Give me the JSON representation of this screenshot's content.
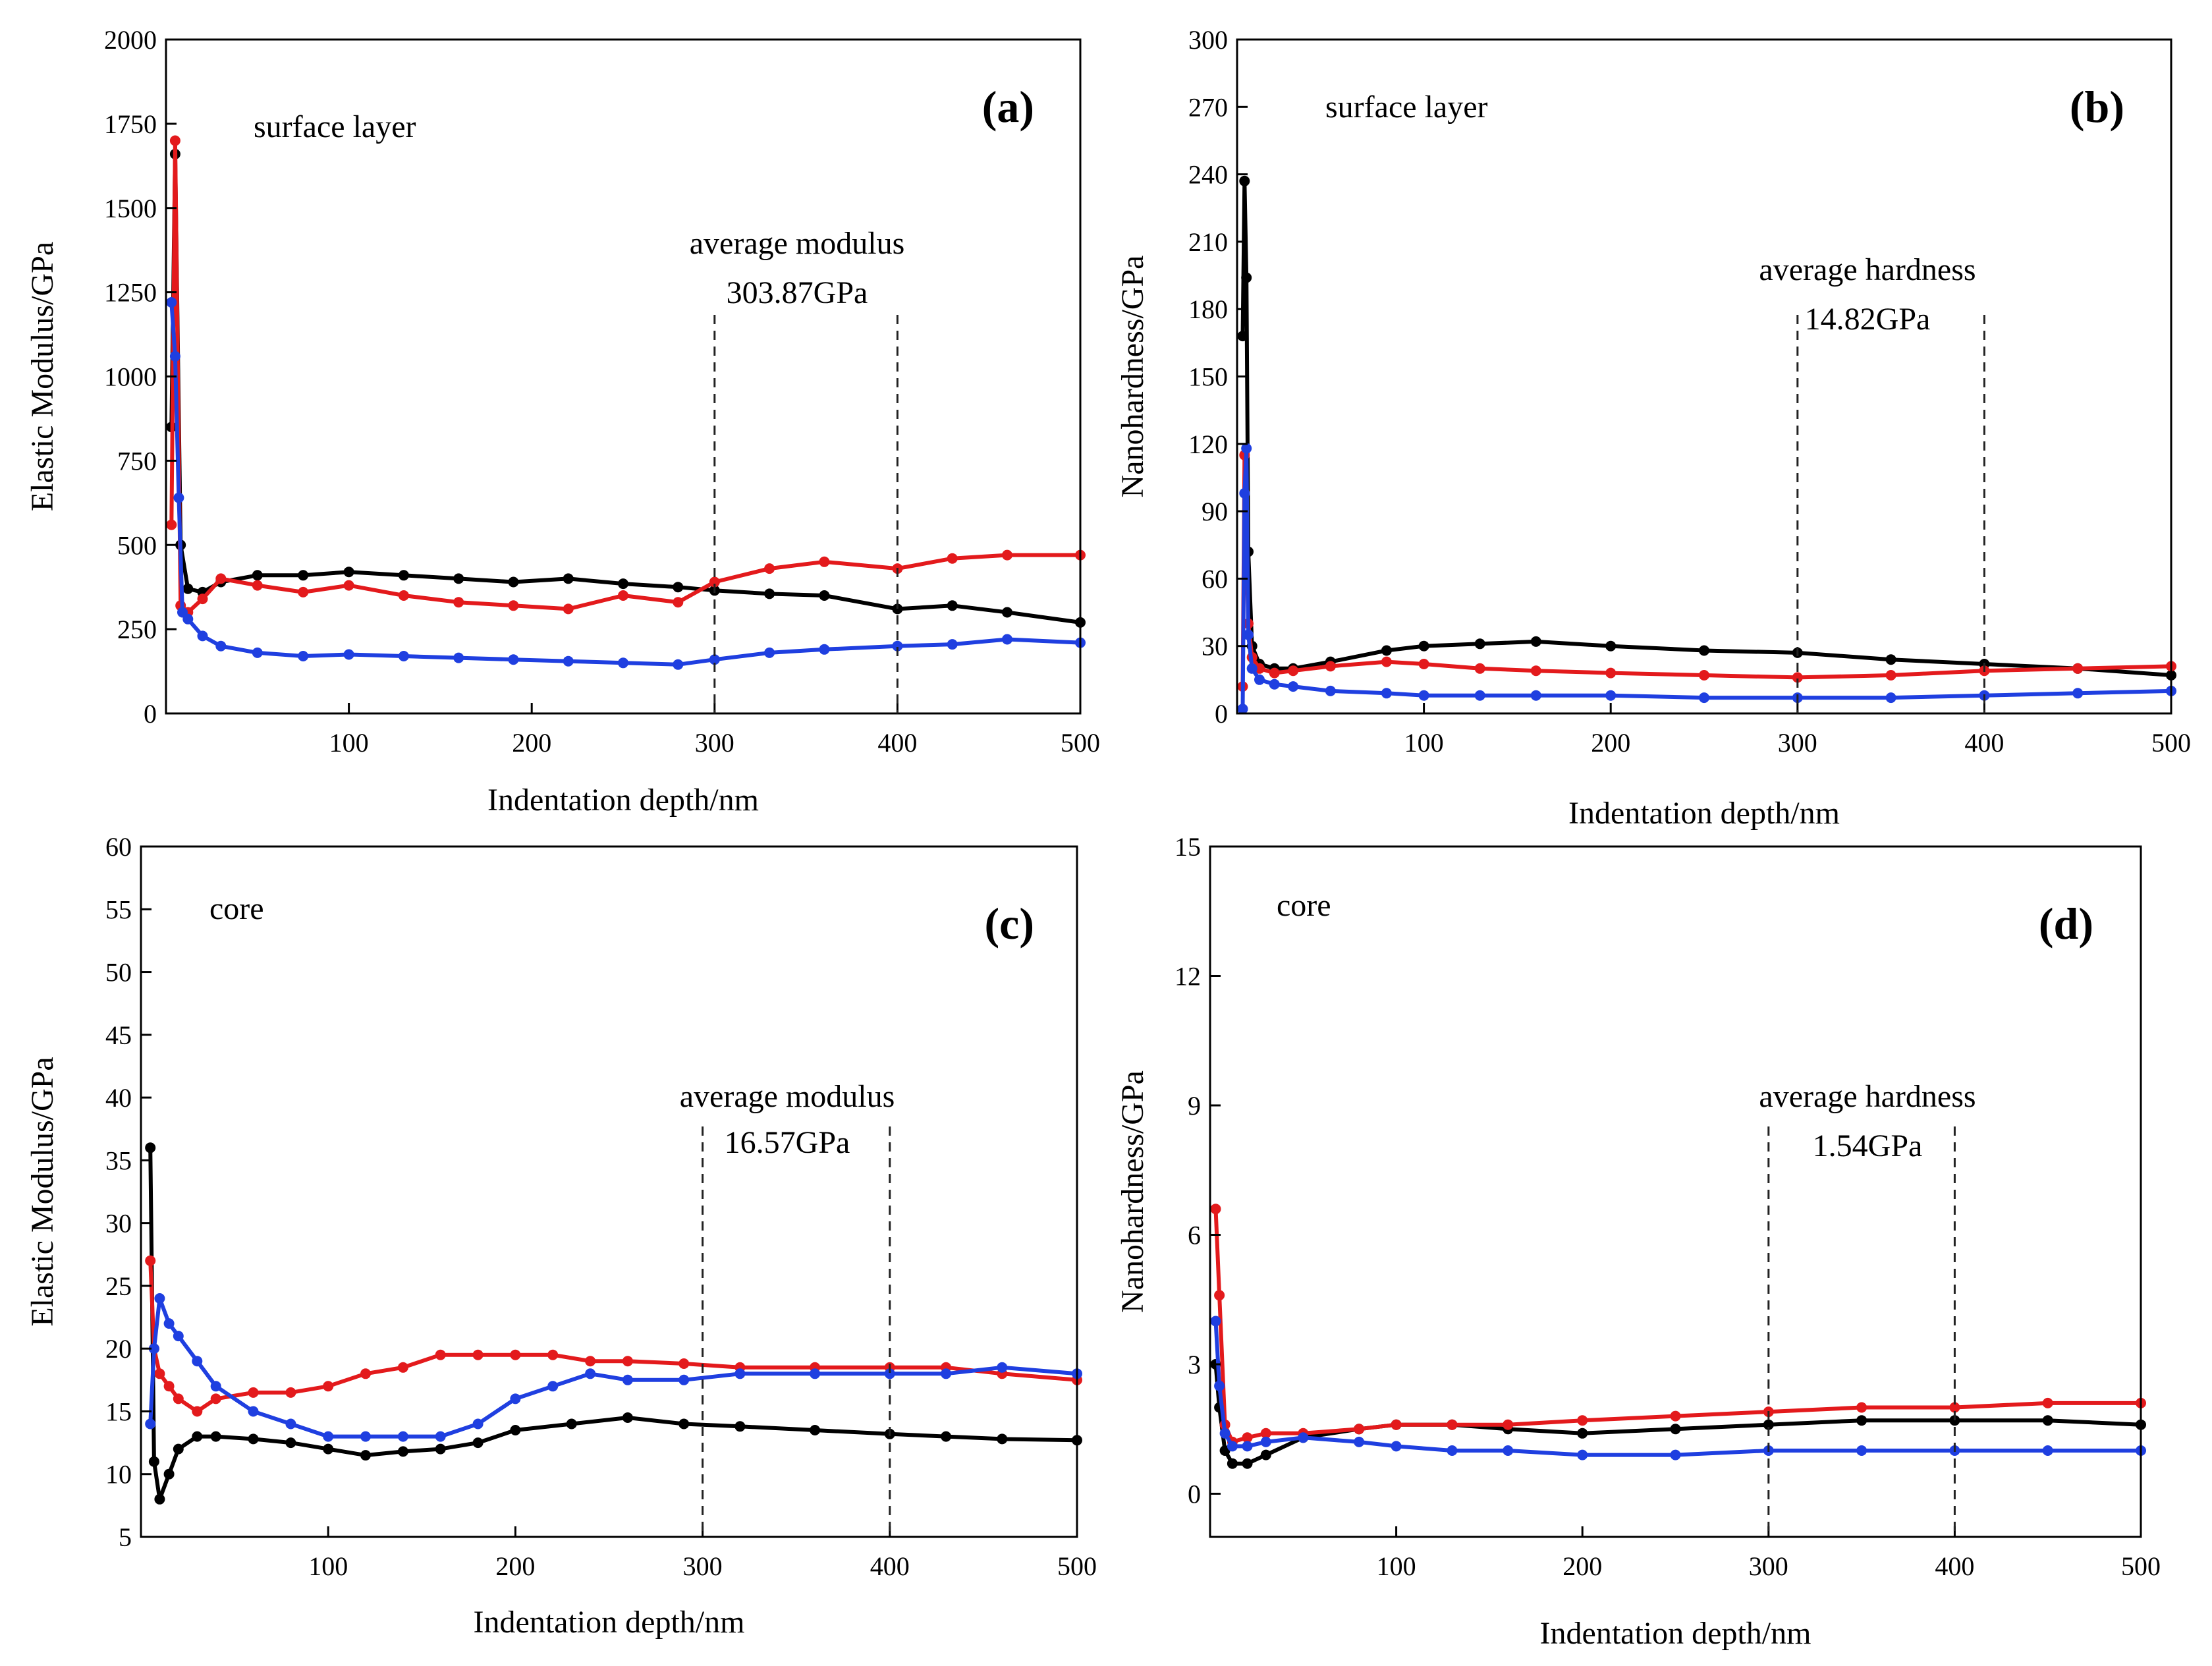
{
  "chart_data": [
    {
      "panel": "(a)",
      "type": "scatter",
      "region_label": "surface layer",
      "xlabel": "Indentation depth/nm",
      "ylabel": "Elastic Modulus/GPa",
      "xlim": [
        0,
        500
      ],
      "ylim": [
        0,
        2000
      ],
      "xticks": [
        100,
        200,
        300,
        400,
        500
      ],
      "yticks": [
        0,
        250,
        500,
        750,
        1000,
        1250,
        1500,
        1750,
        2000
      ],
      "annotation": {
        "line1": "average modulus",
        "line2": "303.87GPa"
      },
      "vlines": [
        300,
        400
      ],
      "series": [
        {
          "name": "black",
          "color": "#000000",
          "x": [
            3,
            5,
            8,
            12,
            20,
            30,
            50,
            75,
            100,
            130,
            160,
            190,
            220,
            250,
            280,
            300,
            330,
            360,
            400,
            430,
            460,
            500
          ],
          "y": [
            850,
            1660,
            500,
            370,
            360,
            390,
            410,
            410,
            420,
            410,
            400,
            390,
            400,
            385,
            375,
            365,
            355,
            350,
            310,
            320,
            300,
            270
          ]
        },
        {
          "name": "red",
          "color": "#e31a1c",
          "x": [
            3,
            5,
            8,
            12,
            20,
            30,
            50,
            75,
            100,
            130,
            160,
            190,
            220,
            250,
            280,
            300,
            330,
            360,
            400,
            430,
            460,
            500
          ],
          "y": [
            560,
            1700,
            320,
            300,
            340,
            400,
            380,
            360,
            380,
            350,
            330,
            320,
            310,
            350,
            330,
            390,
            430,
            450,
            430,
            460,
            470,
            470
          ]
        },
        {
          "name": "blue",
          "color": "#1f3fe0",
          "x": [
            3,
            5,
            7,
            9,
            12,
            20,
            30,
            50,
            75,
            100,
            130,
            160,
            190,
            220,
            250,
            280,
            300,
            330,
            360,
            400,
            430,
            460,
            500
          ],
          "y": [
            1220,
            1060,
            640,
            300,
            280,
            230,
            200,
            180,
            170,
            175,
            170,
            165,
            160,
            155,
            150,
            145,
            160,
            180,
            190,
            200,
            205,
            220,
            210
          ]
        }
      ]
    },
    {
      "panel": "(b)",
      "type": "scatter",
      "region_label": "surface layer",
      "xlabel": "Indentation depth/nm",
      "ylabel": "Nanohardness/GPa",
      "xlim": [
        0,
        500
      ],
      "ylim": [
        0,
        300
      ],
      "xticks": [
        100,
        200,
        300,
        400,
        500
      ],
      "yticks": [
        0,
        30,
        60,
        90,
        120,
        150,
        180,
        210,
        240,
        270,
        300
      ],
      "annotation": {
        "line1": "average hardness",
        "line2": "14.82GPa"
      },
      "vlines": [
        300,
        400
      ],
      "series": [
        {
          "name": "black",
          "color": "#000000",
          "x": [
            3,
            4,
            5,
            6,
            8,
            12,
            20,
            30,
            50,
            80,
            100,
            130,
            160,
            200,
            250,
            300,
            350,
            400,
            450,
            500
          ],
          "y": [
            168,
            237,
            194,
            72,
            30,
            22,
            20,
            20,
            23,
            28,
            30,
            31,
            32,
            30,
            28,
            27,
            24,
            22,
            20,
            17
          ]
        },
        {
          "name": "red",
          "color": "#e31a1c",
          "x": [
            3,
            4,
            6,
            8,
            12,
            20,
            30,
            50,
            80,
            100,
            130,
            160,
            200,
            250,
            300,
            350,
            400,
            450,
            500
          ],
          "y": [
            12,
            115,
            40,
            25,
            20,
            18,
            19,
            21,
            23,
            22,
            20,
            19,
            18,
            17,
            16,
            17,
            19,
            20,
            21
          ]
        },
        {
          "name": "blue",
          "color": "#1f3fe0",
          "x": [
            3,
            4,
            5,
            6,
            8,
            12,
            20,
            30,
            50,
            80,
            100,
            130,
            160,
            200,
            250,
            300,
            350,
            400,
            450,
            500
          ],
          "y": [
            2,
            98,
            118,
            35,
            20,
            15,
            13,
            12,
            10,
            9,
            8,
            8,
            8,
            8,
            7,
            7,
            7,
            8,
            9,
            10
          ]
        }
      ]
    },
    {
      "panel": "(c)",
      "type": "scatter",
      "region_label": "core",
      "xlabel": "Indentation depth/nm",
      "ylabel": "Elastic Modulus/GPa",
      "xlim": [
        0,
        500
      ],
      "ylim": [
        5,
        60
      ],
      "xticks": [
        100,
        200,
        300,
        400,
        500
      ],
      "yticks": [
        5,
        10,
        15,
        20,
        25,
        30,
        35,
        40,
        45,
        50,
        55,
        60
      ],
      "annotation": {
        "line1": "average modulus",
        "line2": "16.57GPa"
      },
      "vlines": [
        300,
        400
      ],
      "series": [
        {
          "name": "black",
          "color": "#000000",
          "x": [
            5,
            7,
            10,
            15,
            20,
            30,
            40,
            60,
            80,
            100,
            120,
            140,
            160,
            180,
            200,
            230,
            260,
            290,
            320,
            360,
            400,
            430,
            460,
            500
          ],
          "y": [
            36,
            11,
            8,
            10,
            12,
            13,
            13,
            12.8,
            12.5,
            12,
            11.5,
            11.8,
            12,
            12.5,
            13.5,
            14,
            14.5,
            14,
            13.8,
            13.5,
            13.2,
            13,
            12.8,
            12.7
          ]
        },
        {
          "name": "red",
          "color": "#e31a1c",
          "x": [
            5,
            7,
            10,
            15,
            20,
            30,
            40,
            60,
            80,
            100,
            120,
            140,
            160,
            180,
            200,
            220,
            240,
            260,
            290,
            320,
            360,
            400,
            430,
            460,
            500
          ],
          "y": [
            27,
            20,
            18,
            17,
            16,
            15,
            16,
            16.5,
            16.5,
            17,
            18,
            18.5,
            19.5,
            19.5,
            19.5,
            19.5,
            19,
            19,
            18.8,
            18.5,
            18.5,
            18.5,
            18.5,
            18,
            17.5
          ]
        },
        {
          "name": "blue",
          "color": "#1f3fe0",
          "x": [
            5,
            7,
            10,
            15,
            20,
            30,
            40,
            60,
            80,
            100,
            120,
            140,
            160,
            180,
            200,
            220,
            240,
            260,
            290,
            320,
            360,
            400,
            430,
            460,
            500
          ],
          "y": [
            14,
            20,
            24,
            22,
            21,
            19,
            17,
            15,
            14,
            13,
            13,
            13,
            13,
            14,
            16,
            17,
            18,
            17.5,
            17.5,
            18,
            18,
            18,
            18,
            18.5,
            18
          ]
        }
      ]
    },
    {
      "panel": "(d)",
      "type": "scatter",
      "region_label": "core",
      "xlabel": "Indentation depth/nm",
      "ylabel": "Nanohardness/GPa",
      "xlim": [
        0,
        500
      ],
      "ylim": [
        -1,
        15
      ],
      "xticks": [
        100,
        200,
        300,
        400,
        500
      ],
      "yticks": [
        0,
        3,
        6,
        9,
        12,
        15
      ],
      "annotation": {
        "line1": "average hardness",
        "line2": "1.54GPa"
      },
      "vlines": [
        300,
        400
      ],
      "series": [
        {
          "name": "black",
          "color": "#000000",
          "x": [
            3,
            5,
            8,
            12,
            20,
            30,
            50,
            80,
            100,
            130,
            160,
            200,
            250,
            300,
            350,
            400,
            450,
            500
          ],
          "y": [
            3.0,
            2.0,
            1.0,
            0.7,
            0.7,
            0.9,
            1.3,
            1.5,
            1.6,
            1.6,
            1.5,
            1.4,
            1.5,
            1.6,
            1.7,
            1.7,
            1.7,
            1.6
          ]
        },
        {
          "name": "red",
          "color": "#e31a1c",
          "x": [
            3,
            5,
            8,
            12,
            20,
            30,
            50,
            80,
            100,
            130,
            160,
            200,
            250,
            300,
            350,
            400,
            450,
            500
          ],
          "y": [
            6.6,
            4.6,
            1.6,
            1.2,
            1.3,
            1.4,
            1.4,
            1.5,
            1.6,
            1.6,
            1.6,
            1.7,
            1.8,
            1.9,
            2.0,
            2.0,
            2.1,
            2.1
          ]
        },
        {
          "name": "blue",
          "color": "#1f3fe0",
          "x": [
            3,
            5,
            8,
            12,
            20,
            30,
            50,
            80,
            100,
            130,
            160,
            200,
            250,
            300,
            350,
            400,
            450,
            500
          ],
          "y": [
            4.0,
            2.5,
            1.4,
            1.1,
            1.1,
            1.2,
            1.3,
            1.2,
            1.1,
            1.0,
            1.0,
            0.9,
            0.9,
            1.0,
            1.0,
            1.0,
            1.0,
            1.0
          ]
        }
      ]
    }
  ]
}
